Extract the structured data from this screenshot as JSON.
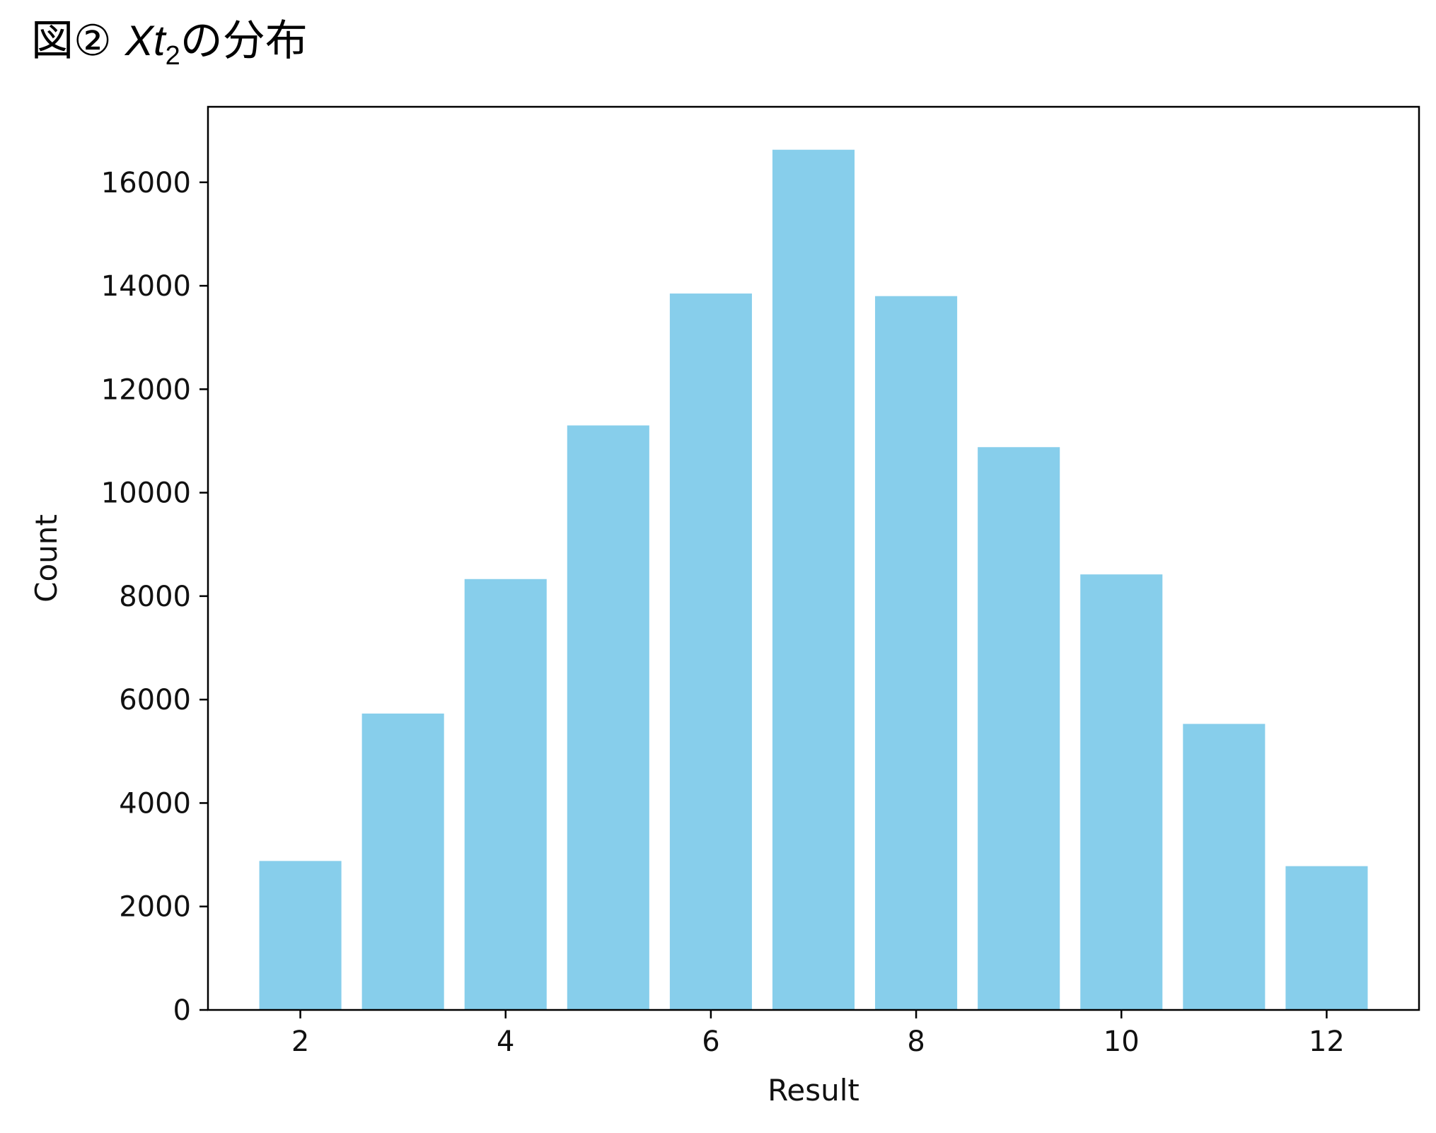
{
  "title": {
    "prefix": "図②",
    "var_main": "Xt",
    "var_sub": "2",
    "suffix": "の分布"
  },
  "chart_data": {
    "type": "bar",
    "x": [
      2,
      3,
      4,
      5,
      6,
      7,
      8,
      9,
      10,
      11,
      12
    ],
    "values": [
      2880,
      5730,
      8330,
      11300,
      13850,
      16630,
      13800,
      10880,
      8420,
      5530,
      2780
    ],
    "xlabel": "Result",
    "ylabel": "Count",
    "xticks": [
      2,
      4,
      6,
      8,
      10,
      12
    ],
    "yticks": [
      0,
      2000,
      4000,
      6000,
      8000,
      10000,
      12000,
      14000,
      16000
    ],
    "xlim": [
      1.1,
      12.9
    ],
    "ylim": [
      0,
      17460
    ],
    "bar_color": "#87CEEB",
    "grid": false,
    "legend": "none"
  }
}
